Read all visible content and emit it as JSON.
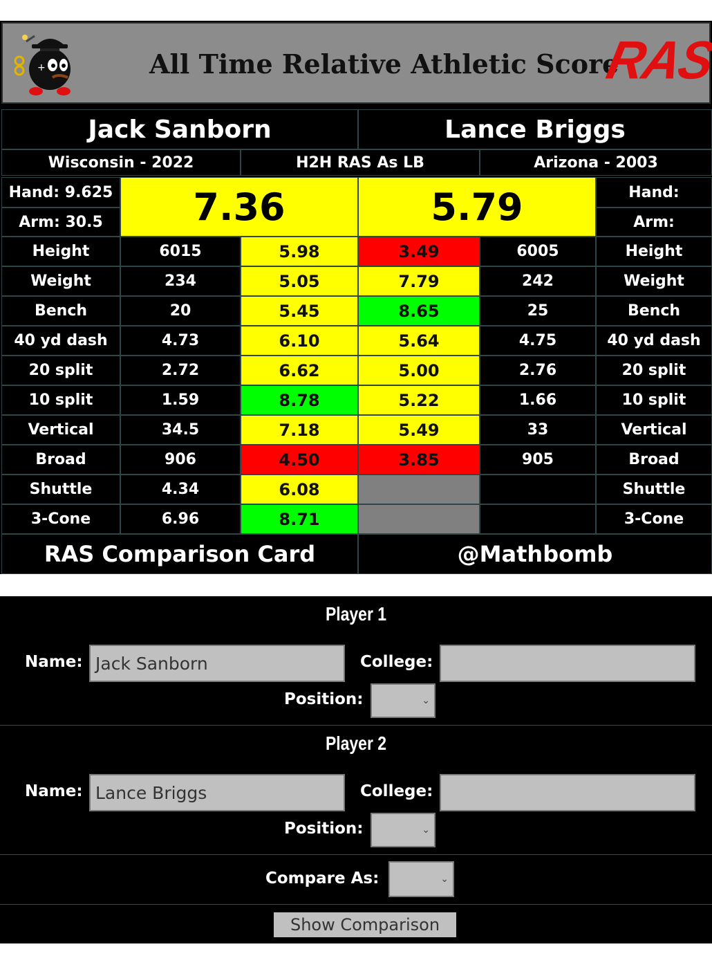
{
  "banner": {
    "title": "All Time Relative Athletic Score",
    "logo_text": "RAS"
  },
  "card": {
    "player1": {
      "name": "Jack Sanborn",
      "school": "Wisconsin - 2022",
      "hand": "Hand: 9.625",
      "arm": "Arm: 30.5",
      "score": "7.36"
    },
    "player2": {
      "name": "Lance Briggs",
      "school": "Arizona - 2003",
      "hand": "Hand:",
      "arm": "Arm:",
      "score": "5.79"
    },
    "center_label": "H2H RAS As LB",
    "rows": [
      {
        "label": "Height",
        "p1": "6015",
        "s1": "5.98",
        "c1": "y",
        "s2": "3.49",
        "c2": "r",
        "p2": "6005"
      },
      {
        "label": "Weight",
        "p1": "234",
        "s1": "5.05",
        "c1": "y",
        "s2": "7.79",
        "c2": "y",
        "p2": "242"
      },
      {
        "label": "Bench",
        "p1": "20",
        "s1": "5.45",
        "c1": "y",
        "s2": "8.65",
        "c2": "g",
        "p2": "25"
      },
      {
        "label": "40 yd dash",
        "p1": "4.73",
        "s1": "6.10",
        "c1": "y",
        "s2": "5.64",
        "c2": "y",
        "p2": "4.75"
      },
      {
        "label": "20 split",
        "p1": "2.72",
        "s1": "6.62",
        "c1": "y",
        "s2": "5.00",
        "c2": "y",
        "p2": "2.76"
      },
      {
        "label": "10 split",
        "p1": "1.59",
        "s1": "8.78",
        "c1": "g",
        "s2": "5.22",
        "c2": "y",
        "p2": "1.66"
      },
      {
        "label": "Vertical",
        "p1": "34.5",
        "s1": "7.18",
        "c1": "y",
        "s2": "5.49",
        "c2": "y",
        "p2": "33"
      },
      {
        "label": "Broad",
        "p1": "906",
        "s1": "4.50",
        "c1": "r",
        "s2": "3.85",
        "c2": "r",
        "p2": "905"
      },
      {
        "label": "Shuttle",
        "p1": "4.34",
        "s1": "6.08",
        "c1": "y",
        "s2": "",
        "c2": "gr",
        "p2": ""
      },
      {
        "label": "3-Cone",
        "p1": "6.96",
        "s1": "8.71",
        "c1": "g",
        "s2": "",
        "c2": "gr",
        "p2": ""
      }
    ],
    "footer_left": "RAS Comparison Card",
    "footer_right": "@Mathbomb"
  },
  "form": {
    "player1": {
      "heading": "Player 1",
      "name_label": "Name:",
      "name_value": "Jack Sanborn",
      "college_label": "College:",
      "college_value": "",
      "position_label": "Position:",
      "position_value": ""
    },
    "player2": {
      "heading": "Player 2",
      "name_label": "Name:",
      "name_value": "Lance Briggs",
      "college_label": "College:",
      "college_value": "",
      "position_label": "Position:",
      "position_value": ""
    },
    "compare_label": "Compare As:",
    "compare_value": "",
    "button_label": "Show Comparison"
  },
  "colors": {
    "yellow": "#ffff00",
    "green": "#00ff00",
    "red": "#ff0000",
    "gray": "#808080",
    "logo_red": "#e01010"
  },
  "icons": {
    "mascot": "bomb-mascot-icon",
    "dropdown": "chevron-down-icon"
  }
}
